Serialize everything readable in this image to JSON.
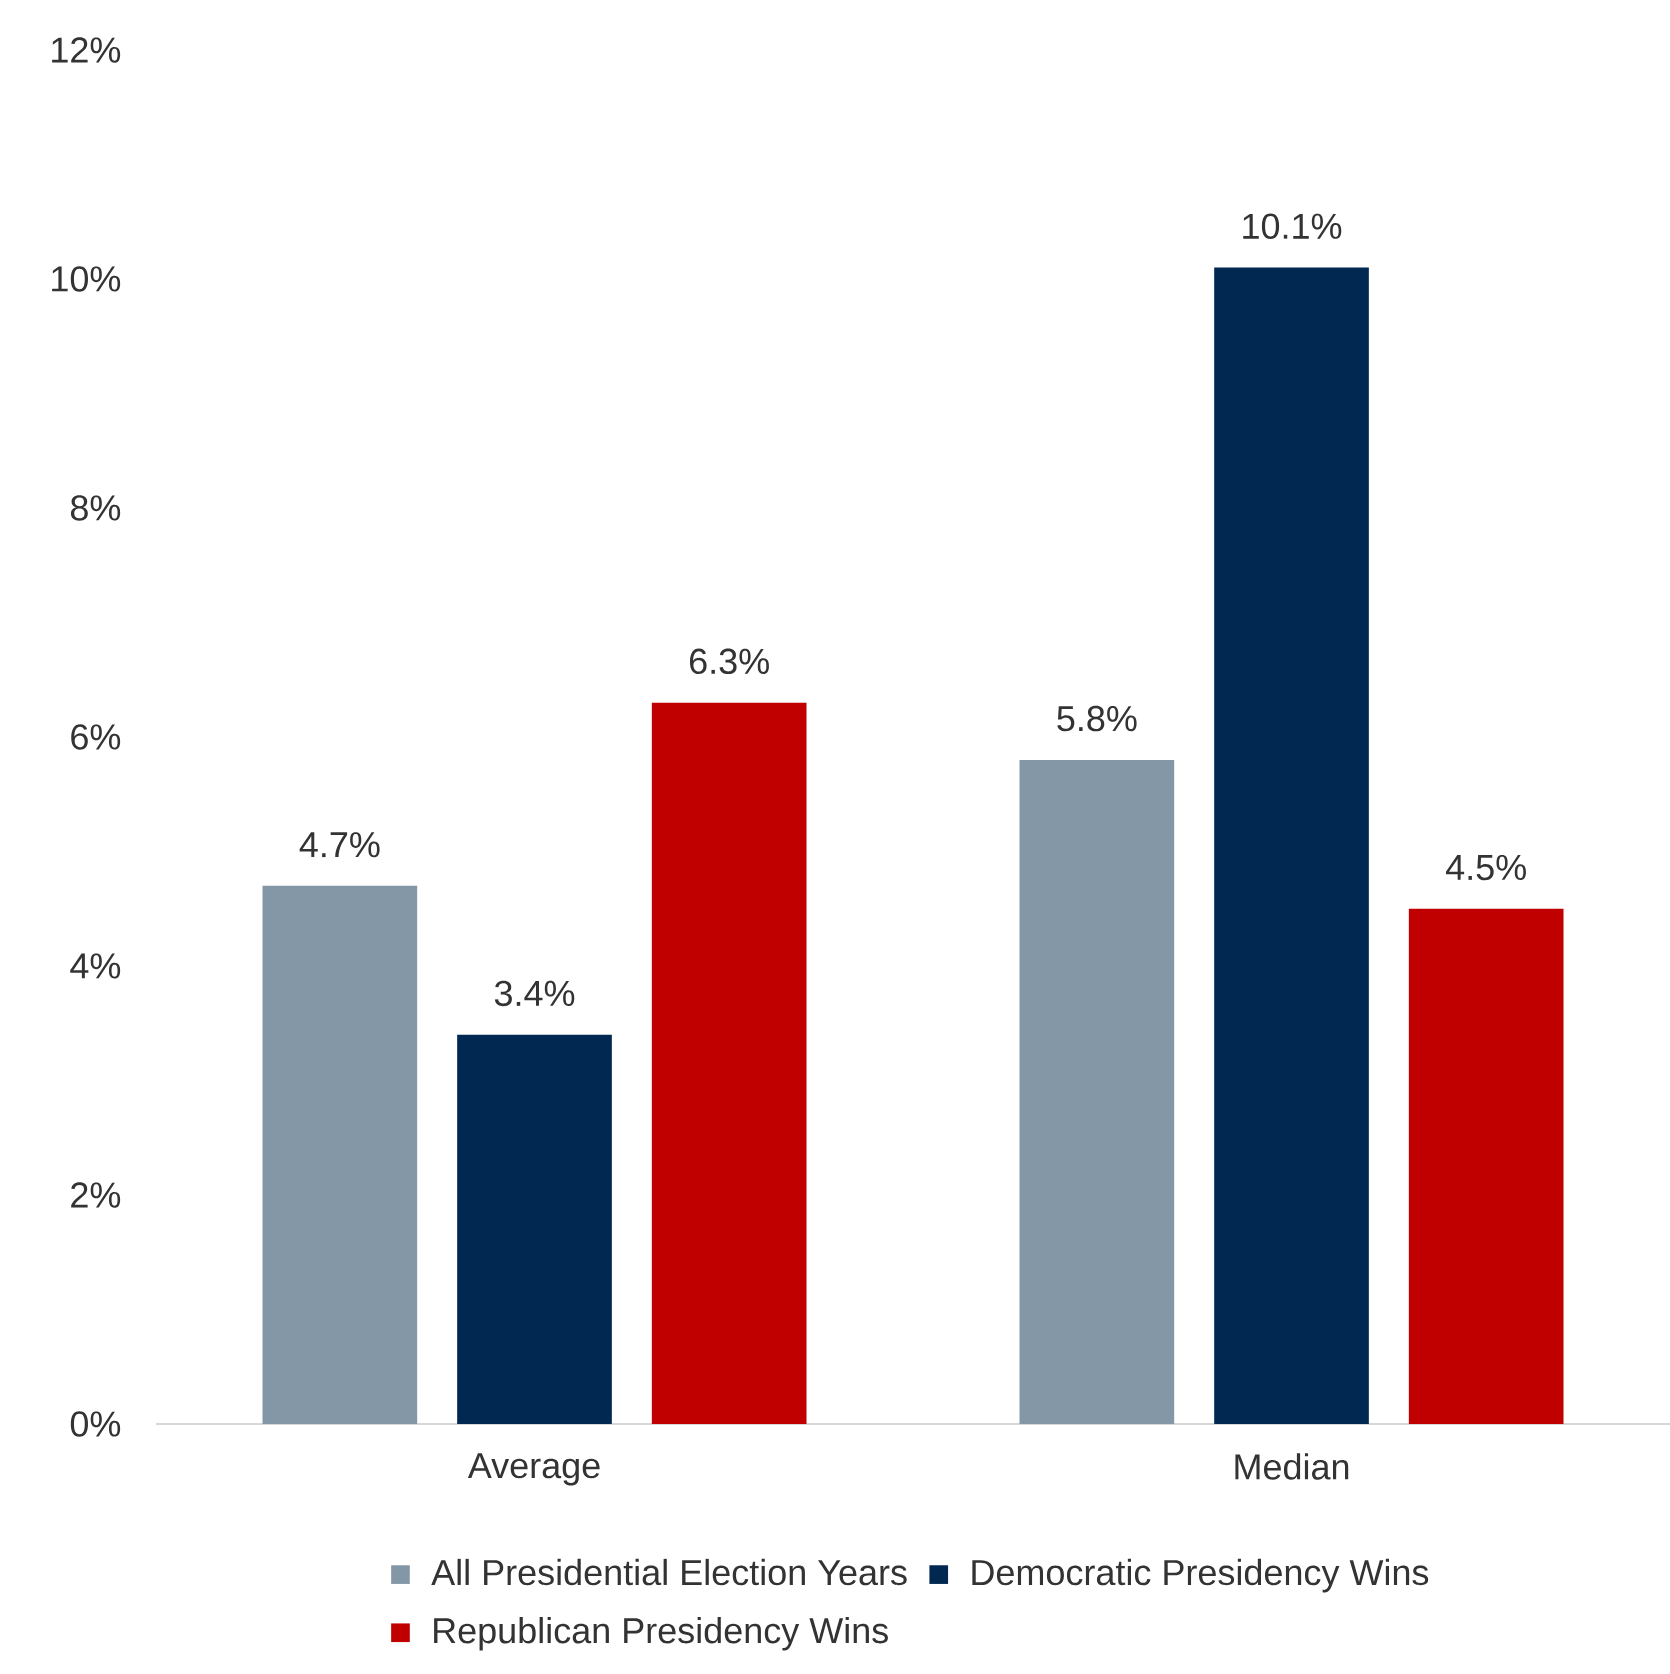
{
  "chart_data": {
    "type": "bar",
    "categories": [
      "Average",
      "Median"
    ],
    "series": [
      {
        "name": "All Presidential Election Years",
        "color": "#8497a6",
        "values": [
          4.7,
          5.8
        ],
        "value_labels": [
          "4.7%",
          "5.8%"
        ]
      },
      {
        "name": "Democratic Presidency Wins",
        "color": "#002850",
        "values": [
          3.4,
          10.1
        ],
        "value_labels": [
          "3.4%",
          "10.1%"
        ]
      },
      {
        "name": "Republican Presidency Wins",
        "color": "#c00000",
        "values": [
          6.3,
          4.5
        ],
        "value_labels": [
          "6.3%",
          "4.5%"
        ]
      }
    ],
    "ylim": [
      0,
      12
    ],
    "yticks": [
      {
        "value": 0,
        "label": "0%"
      },
      {
        "value": 2,
        "label": "2%"
      },
      {
        "value": 4,
        "label": "4%"
      },
      {
        "value": 6,
        "label": "6%"
      },
      {
        "value": 8,
        "label": "8%"
      },
      {
        "value": 10,
        "label": "10%"
      },
      {
        "value": 12,
        "label": "12%"
      }
    ],
    "grid": false,
    "legend": "bottom"
  }
}
